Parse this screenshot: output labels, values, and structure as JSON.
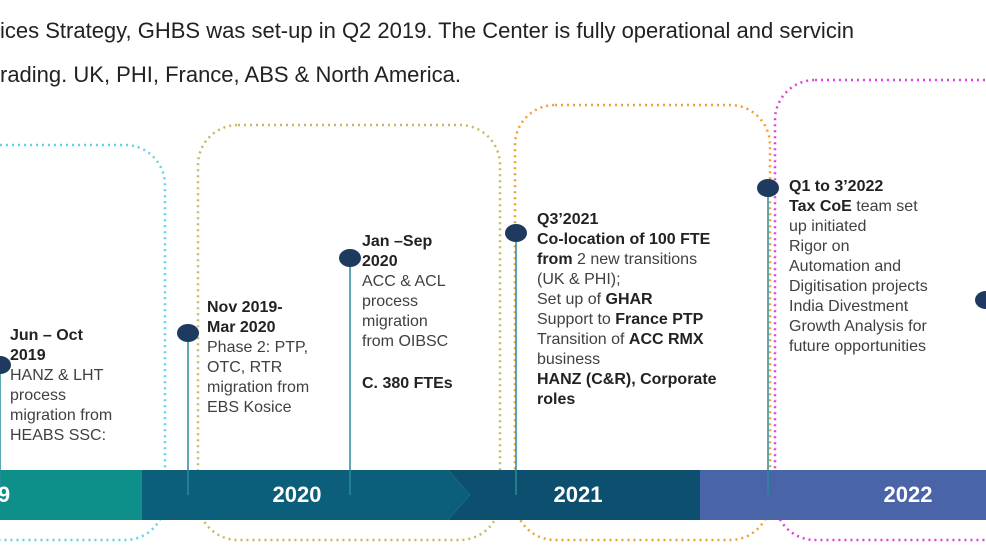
{
  "intro": [
    "ices Strategy, GHBS was set-up in Q2 2019. The Center is fully operational and servicin",
    "rading. UK, PHI, France, ABS & North America."
  ],
  "timeline": {
    "years": [
      "9",
      "2020",
      "2021",
      "2022"
    ]
  },
  "milestones": [
    {
      "lines": [
        [
          {
            "text": "Jun – Oct",
            "bold": true
          }
        ],
        [
          {
            "text": "2019",
            "bold": true
          }
        ],
        [
          {
            "text": "HANZ & LHT",
            "bold": false
          }
        ],
        [
          {
            "text": "process",
            "bold": false
          }
        ],
        [
          {
            "text": "migration from",
            "bold": false
          }
        ],
        [
          {
            "text": "HEABS SSC:",
            "bold": false
          }
        ]
      ]
    },
    {
      "lines": [
        [
          {
            "text": "Nov 2019-",
            "bold": true
          }
        ],
        [
          {
            "text": "Mar 2020",
            "bold": true
          }
        ],
        [
          {
            "text": "Phase 2: PTP,",
            "bold": false
          }
        ],
        [
          {
            "text": "OTC, RTR",
            "bold": false
          }
        ],
        [
          {
            "text": "migration from",
            "bold": false
          }
        ],
        [
          {
            "text": "EBS Kosice",
            "bold": false
          }
        ]
      ]
    },
    {
      "lines": [
        [
          {
            "text": "Jan –Sep",
            "bold": true
          }
        ],
        [
          {
            "text": "2020",
            "bold": true
          }
        ],
        [
          {
            "text": "ACC & ACL",
            "bold": false
          }
        ],
        [
          {
            "text": "process",
            "bold": false
          }
        ],
        [
          {
            "text": "migration",
            "bold": false
          }
        ],
        [
          {
            "text": "from OIBSC",
            "bold": false
          }
        ],
        [
          {
            "text": "C. 380 FTEs",
            "bold": true
          }
        ]
      ]
    },
    {
      "lines": [
        [
          {
            "text": "Q3’2021",
            "bold": true
          }
        ],
        [
          {
            "text": "Co-location of 100 FTE",
            "bold": true
          }
        ],
        [
          {
            "text": "from",
            "bold": true
          },
          {
            "text": " 2 new transitions",
            "bold": false
          }
        ],
        [
          {
            "text": "(UK & PHI);",
            "bold": false
          }
        ],
        [
          {
            "text": "Set up of ",
            "bold": false
          },
          {
            "text": "GHAR",
            "bold": true
          }
        ],
        [
          {
            "text": "Support to ",
            "bold": false
          },
          {
            "text": "France PTP",
            "bold": true
          }
        ],
        [
          {
            "text": "Transition of ",
            "bold": false
          },
          {
            "text": "ACC RMX",
            "bold": true
          }
        ],
        [
          {
            "text": "business",
            "bold": false
          }
        ],
        [
          {
            "text": "HANZ (C&R), Corporate",
            "bold": true
          }
        ],
        [
          {
            "text": "roles",
            "bold": true
          }
        ]
      ]
    },
    {
      "lines": [
        [
          {
            "text": "Q1 to 3’2022",
            "bold": true
          }
        ],
        [
          {
            "text": "Tax CoE",
            "bold": true
          },
          {
            "text": " team set",
            "bold": false
          }
        ],
        [
          {
            "text": "up initiated",
            "bold": false
          }
        ],
        [
          {
            "text": "Rigor on",
            "bold": false
          }
        ],
        [
          {
            "text": "Automation and",
            "bold": false
          }
        ],
        [
          {
            "text": "Digitisation projects",
            "bold": false
          }
        ],
        [
          {
            "text": "India Divestment",
            "bold": false
          }
        ],
        [
          {
            "text": "Growth Analysis for",
            "bold": false
          }
        ],
        [
          {
            "text": "future opportunities",
            "bold": false
          }
        ]
      ]
    }
  ]
}
